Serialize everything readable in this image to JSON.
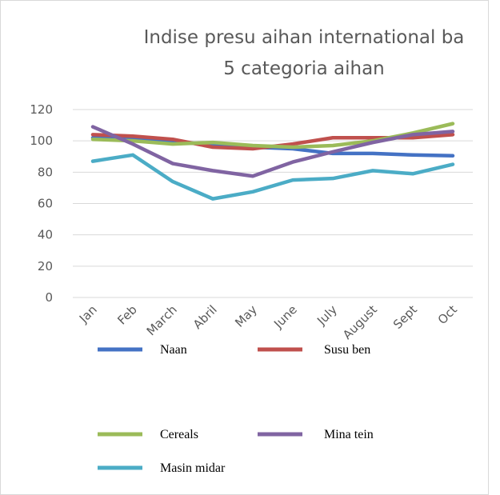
{
  "chart_data": {
    "type": "line",
    "title": [
      "Indise presu aihan international ba",
      "5 categoria aihan"
    ],
    "categories": [
      "Jan",
      "Feb",
      "March",
      "Abril",
      "May",
      "June",
      "July",
      "August",
      "Sept",
      "Oct"
    ],
    "series": [
      {
        "name": "Naan",
        "color": "#4472c4",
        "values": [
          102,
          101,
          99,
          98,
          96,
          95,
          92,
          92,
          91,
          90.5
        ]
      },
      {
        "name": "Susu ben",
        "color": "#c0504d",
        "values": [
          104,
          103,
          101,
          96,
          95,
          98,
          102,
          102,
          102,
          104
        ]
      },
      {
        "name": "Cereals",
        "color": "#9bbb59",
        "values": [
          101,
          100,
          98,
          99,
          97,
          96,
          97,
          100,
          105,
          111
        ]
      },
      {
        "name": "Mina tein",
        "color": "#8064a2",
        "values": [
          109,
          98,
          85.5,
          81,
          77.5,
          86.5,
          93,
          99,
          104,
          106
        ]
      },
      {
        "name": "Masin midar",
        "color": "#4bacc6",
        "values": [
          87,
          91,
          74,
          63,
          67.5,
          75,
          76,
          81,
          79,
          85
        ]
      }
    ],
    "ylim": [
      0,
      120
    ],
    "yticks": [
      0,
      20,
      40,
      60,
      80,
      100,
      120
    ],
    "grid": true,
    "legend": "bottom"
  }
}
